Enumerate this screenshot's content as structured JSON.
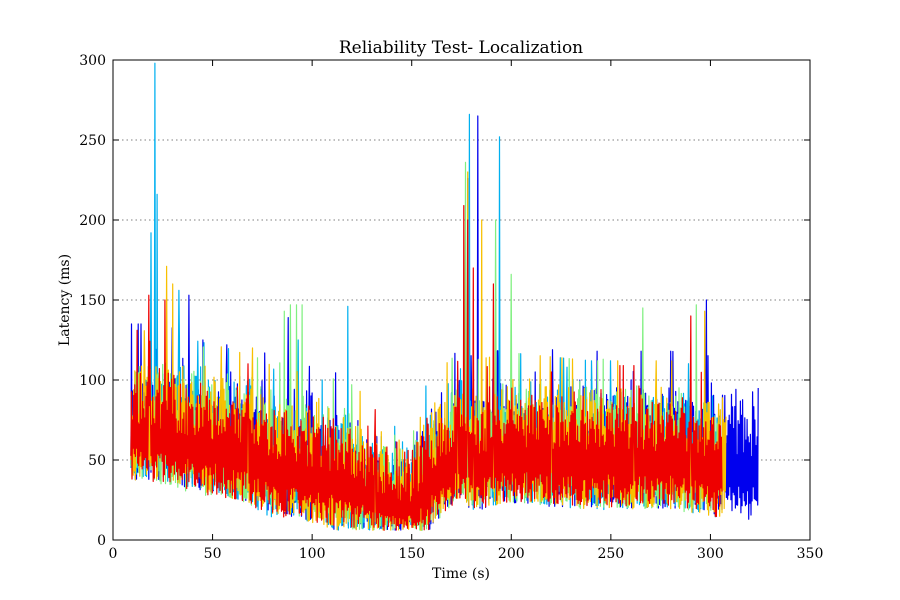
{
  "chart_data": {
    "type": "line",
    "title": "Reliability Test- Localization",
    "xlabel": "Time (s)",
    "ylabel": "Latency (ms)",
    "xlim": [
      0,
      350
    ],
    "ylim": [
      0,
      300
    ],
    "xticks": [
      0,
      50,
      100,
      150,
      200,
      250,
      300,
      350
    ],
    "yticks": [
      0,
      50,
      100,
      150,
      200,
      250,
      300
    ],
    "grid": "horizontal dotted",
    "legend": "none",
    "series": [
      {
        "color": "#0000ee",
        "t_end": 324,
        "envelope": [
          [
            9,
            75
          ],
          [
            20,
            75
          ],
          [
            40,
            70
          ],
          [
            60,
            65
          ],
          [
            80,
            55
          ],
          [
            100,
            48
          ],
          [
            120,
            42
          ],
          [
            130,
            30
          ],
          [
            150,
            25
          ],
          [
            160,
            45
          ],
          [
            175,
            60
          ],
          [
            180,
            55
          ],
          [
            200,
            60
          ],
          [
            240,
            58
          ],
          [
            280,
            58
          ],
          [
            300,
            55
          ],
          [
            310,
            50
          ],
          [
            324,
            50
          ]
        ],
        "spread": 40,
        "spikes": [
          [
            38,
            153
          ],
          [
            45,
            125
          ],
          [
            57,
            122
          ],
          [
            88,
            139
          ],
          [
            178,
            226
          ],
          [
            183,
            265
          ],
          [
            212,
            105
          ],
          [
            260,
            100
          ],
          [
            298,
            150
          ],
          [
            324,
            95
          ]
        ]
      },
      {
        "color": "#00b0f0",
        "t_end": 305,
        "envelope": [
          [
            9,
            70
          ],
          [
            20,
            75
          ],
          [
            40,
            68
          ],
          [
            60,
            62
          ],
          [
            80,
            50
          ],
          [
            100,
            45
          ],
          [
            120,
            40
          ],
          [
            130,
            30
          ],
          [
            150,
            25
          ],
          [
            160,
            45
          ],
          [
            175,
            65
          ],
          [
            180,
            55
          ],
          [
            200,
            60
          ],
          [
            240,
            55
          ],
          [
            280,
            55
          ],
          [
            305,
            50
          ]
        ],
        "spread": 38,
        "spikes": [
          [
            19,
            192
          ],
          [
            21,
            298
          ],
          [
            22,
            216
          ],
          [
            33,
            156
          ],
          [
            93,
            125
          ],
          [
            105,
            100
          ],
          [
            118,
            146
          ],
          [
            179,
            266
          ],
          [
            194,
            252
          ],
          [
            228,
            108
          ]
        ]
      },
      {
        "color": "#80f080",
        "t_end": 305,
        "envelope": [
          [
            9,
            70
          ],
          [
            20,
            72
          ],
          [
            40,
            65
          ],
          [
            60,
            60
          ],
          [
            80,
            55
          ],
          [
            100,
            48
          ],
          [
            120,
            40
          ],
          [
            130,
            30
          ],
          [
            150,
            25
          ],
          [
            160,
            45
          ],
          [
            175,
            62
          ],
          [
            180,
            55
          ],
          [
            200,
            60
          ],
          [
            240,
            55
          ],
          [
            280,
            55
          ],
          [
            305,
            50
          ]
        ],
        "spread": 38,
        "spikes": [
          [
            86,
            143
          ],
          [
            89,
            147
          ],
          [
            92,
            147
          ],
          [
            95,
            147
          ],
          [
            177,
            236
          ],
          [
            192,
            200
          ],
          [
            200,
            166
          ],
          [
            246,
            113
          ],
          [
            266,
            145
          ],
          [
            293,
            147
          ]
        ]
      },
      {
        "color": "#f8c000",
        "t_end": 308,
        "envelope": [
          [
            9,
            72
          ],
          [
            20,
            75
          ],
          [
            40,
            68
          ],
          [
            60,
            62
          ],
          [
            80,
            52
          ],
          [
            100,
            46
          ],
          [
            120,
            40
          ],
          [
            130,
            30
          ],
          [
            150,
            25
          ],
          [
            160,
            45
          ],
          [
            175,
            62
          ],
          [
            180,
            55
          ],
          [
            200,
            60
          ],
          [
            240,
            55
          ],
          [
            280,
            55
          ],
          [
            308,
            50
          ]
        ],
        "spread": 38,
        "spikes": [
          [
            27,
            171
          ],
          [
            30,
            160
          ],
          [
            70,
            120
          ],
          [
            178,
            230
          ],
          [
            185,
            200
          ],
          [
            297,
            143
          ],
          [
            304,
            85
          ]
        ]
      },
      {
        "color": "#ee0000",
        "t_end": 306,
        "envelope": [
          [
            9,
            72
          ],
          [
            20,
            70
          ],
          [
            40,
            64
          ],
          [
            60,
            60
          ],
          [
            80,
            50
          ],
          [
            100,
            45
          ],
          [
            120,
            40
          ],
          [
            130,
            28
          ],
          [
            150,
            22
          ],
          [
            160,
            42
          ],
          [
            175,
            60
          ],
          [
            180,
            52
          ],
          [
            200,
            58
          ],
          [
            240,
            55
          ],
          [
            280,
            55
          ],
          [
            306,
            48
          ]
        ],
        "spread": 36,
        "spikes": [
          [
            12,
            131
          ],
          [
            18,
            153
          ],
          [
            26,
            150
          ],
          [
            176,
            209
          ],
          [
            178,
            200
          ],
          [
            181,
            170
          ],
          [
            191,
            160
          ],
          [
            220,
            105
          ],
          [
            290,
            140
          ]
        ]
      }
    ]
  }
}
